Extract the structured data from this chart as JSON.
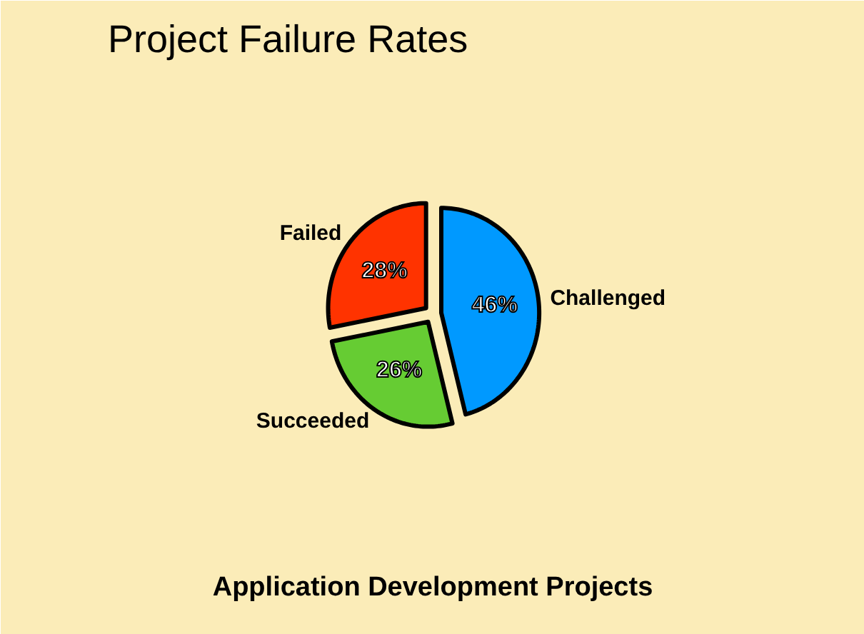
{
  "chart_data": {
    "type": "pie",
    "title": "Project Failure Rates",
    "categories": [
      "Challenged",
      "Succeeded",
      "Failed"
    ],
    "values": [
      46,
      26,
      28
    ],
    "colors": [
      "#0099ff",
      "#66cc33",
      "#ff3300"
    ],
    "value_labels": [
      "46%",
      "26%",
      "28%"
    ],
    "annotations": [
      "Application Development Projects"
    ]
  }
}
